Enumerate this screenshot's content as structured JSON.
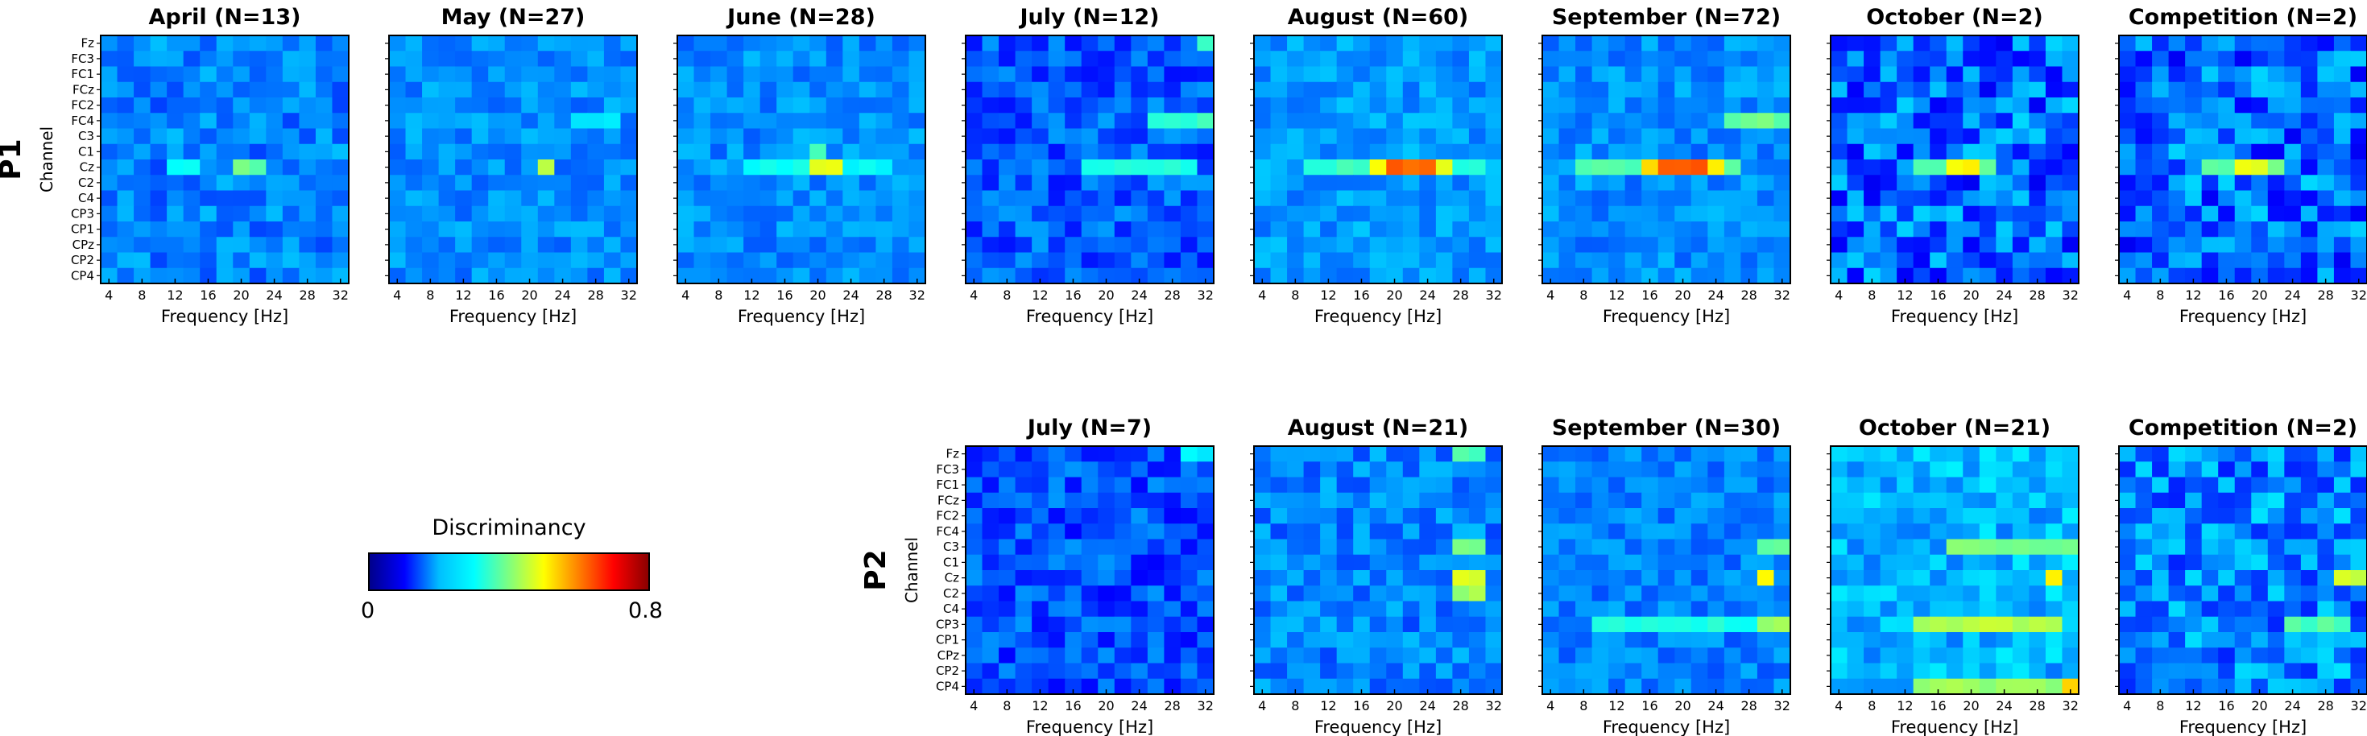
{
  "chart_data": {
    "type": "heatmap",
    "colorbar": {
      "title": "Discriminancy",
      "min_label": "0",
      "max_label": "0.8",
      "range": [
        0,
        0.8
      ],
      "colormap": "jet",
      "colors": [
        "#00008b",
        "#0000ff",
        "#00bfff",
        "#00ffff",
        "#7fff7f",
        "#ffff00",
        "#ff8000",
        "#ff0000",
        "#8b0000"
      ]
    },
    "channels": [
      "Fz",
      "FC3",
      "FC1",
      "FCz",
      "FC2",
      "FC4",
      "C3",
      "C1",
      "Cz",
      "C2",
      "C4",
      "CP3",
      "CP1",
      "CPz",
      "CP2",
      "CP4"
    ],
    "frequency_ticks": [
      "4",
      "8",
      "12",
      "16",
      "20",
      "24",
      "28",
      "32"
    ],
    "frequency_range": [
      3,
      33
    ],
    "xlabel": "Frequency [Hz]",
    "ylabel": "Channel",
    "rows": [
      {
        "label": "P1",
        "panels": [
          {
            "title": "April (N=13)",
            "base": 0.2,
            "noise": 0.05,
            "peaks": [
              {
                "ch": "Cz",
                "f": [
                  20,
                  22
                ],
                "v": 0.38
              },
              {
                "ch": "Cz",
                "f": [
                  12,
                  14
                ],
                "v": 0.3
              }
            ]
          },
          {
            "title": "May (N=27)",
            "base": 0.21,
            "noise": 0.04,
            "peaks": [
              {
                "ch": "Cz",
                "f": [
                  22,
                  22
                ],
                "v": 0.45
              },
              {
                "ch": "FC4",
                "f": [
                  26,
                  30
                ],
                "v": 0.28
              }
            ]
          },
          {
            "title": "June (N=28)",
            "base": 0.21,
            "noise": 0.04,
            "peaks": [
              {
                "ch": "Cz",
                "f": [
                  20,
                  22
                ],
                "v": 0.48
              },
              {
                "ch": "C1",
                "f": [
                  20,
                  20
                ],
                "v": 0.36
              },
              {
                "ch": "Cz",
                "f": [
                  12,
                  28
                ],
                "v": 0.3
              }
            ]
          },
          {
            "title": "July (N=12)",
            "base": 0.17,
            "noise": 0.06,
            "peaks": [
              {
                "ch": "FC4",
                "f": [
                  26,
                  32
                ],
                "v": 0.34
              },
              {
                "ch": "Cz",
                "f": [
                  18,
                  30
                ],
                "v": 0.33
              },
              {
                "ch": "Fz",
                "f": [
                  32,
                  32
                ],
                "v": 0.36
              }
            ]
          },
          {
            "title": "August (N=60)",
            "base": 0.22,
            "noise": 0.04,
            "peaks": [
              {
                "ch": "Cz",
                "f": [
                  20,
                  24
                ],
                "v": 0.62
              },
              {
                "ch": "Cz",
                "f": [
                  18,
                  26
                ],
                "v": 0.48
              },
              {
                "ch": "Cz",
                "f": [
                  10,
                  30
                ],
                "v": 0.34
              }
            ]
          },
          {
            "title": "September (N=72)",
            "base": 0.21,
            "noise": 0.04,
            "peaks": [
              {
                "ch": "Cz",
                "f": [
                  18,
                  22
                ],
                "v": 0.62
              },
              {
                "ch": "Cz",
                "f": [
                  16,
                  24
                ],
                "v": 0.52
              },
              {
                "ch": "Cz",
                "f": [
                  8,
                  26
                ],
                "v": 0.36
              },
              {
                "ch": "FC4",
                "f": [
                  26,
                  32
                ],
                "v": 0.38
              }
            ]
          },
          {
            "title": "October (N=2)",
            "base": 0.18,
            "noise": 0.09,
            "peaks": [
              {
                "ch": "Cz",
                "f": [
                  18,
                  20
                ],
                "v": 0.5
              },
              {
                "ch": "Cz",
                "f": [
                  14,
                  22
                ],
                "v": 0.38
              }
            ]
          },
          {
            "title": "Competition (N=2)",
            "base": 0.18,
            "noise": 0.09,
            "peaks": [
              {
                "ch": "Cz",
                "f": [
                  18,
                  20
                ],
                "v": 0.48
              },
              {
                "ch": "Cz",
                "f": [
                  14,
                  22
                ],
                "v": 0.38
              }
            ]
          }
        ]
      },
      {
        "label": "P2",
        "panels": [
          {
            "title": "July (N=7)",
            "base": 0.16,
            "noise": 0.06,
            "peaks": [
              {
                "ch": "Fz",
                "f": [
                  30,
                  32
                ],
                "v": 0.3
              }
            ]
          },
          {
            "title": "August (N=21)",
            "base": 0.2,
            "noise": 0.05,
            "peaks": [
              {
                "ch": "Cz",
                "f": [
                  28,
                  30
                ],
                "v": 0.48
              },
              {
                "ch": "C3",
                "f": [
                  28,
                  30
                ],
                "v": 0.38
              },
              {
                "ch": "C2",
                "f": [
                  28,
                  30
                ],
                "v": 0.42
              },
              {
                "ch": "Fz",
                "f": [
                  28,
                  30
                ],
                "v": 0.36
              }
            ]
          },
          {
            "title": "September (N=30)",
            "base": 0.2,
            "noise": 0.04,
            "peaks": [
              {
                "ch": "Cz",
                "f": [
                  30,
                  30
                ],
                "v": 0.5
              },
              {
                "ch": "CP3",
                "f": [
                  30,
                  32
                ],
                "v": 0.42
              },
              {
                "ch": "C3",
                "f": [
                  30,
                  32
                ],
                "v": 0.38
              },
              {
                "ch": "CP3",
                "f": [
                  10,
                  28
                ],
                "v": 0.32
              }
            ]
          },
          {
            "title": "October (N=21)",
            "base": 0.24,
            "noise": 0.05,
            "peaks": [
              {
                "ch": "CP3",
                "f": [
                  14,
                  30
                ],
                "v": 0.44
              },
              {
                "ch": "CP4",
                "f": [
                  14,
                  32
                ],
                "v": 0.42
              },
              {
                "ch": "Cz",
                "f": [
                  30,
                  30
                ],
                "v": 0.52
              },
              {
                "ch": "C3",
                "f": [
                  18,
                  32
                ],
                "v": 0.4
              },
              {
                "ch": "CP4",
                "f": [
                  32,
                  32
                ],
                "v": 0.52
              }
            ]
          },
          {
            "title": "Competition (N=2)",
            "base": 0.2,
            "noise": 0.08,
            "peaks": [
              {
                "ch": "Cz",
                "f": [
                  30,
                  32
                ],
                "v": 0.46
              },
              {
                "ch": "CP3",
                "f": [
                  24,
                  30
                ],
                "v": 0.36
              }
            ]
          }
        ]
      }
    ]
  }
}
